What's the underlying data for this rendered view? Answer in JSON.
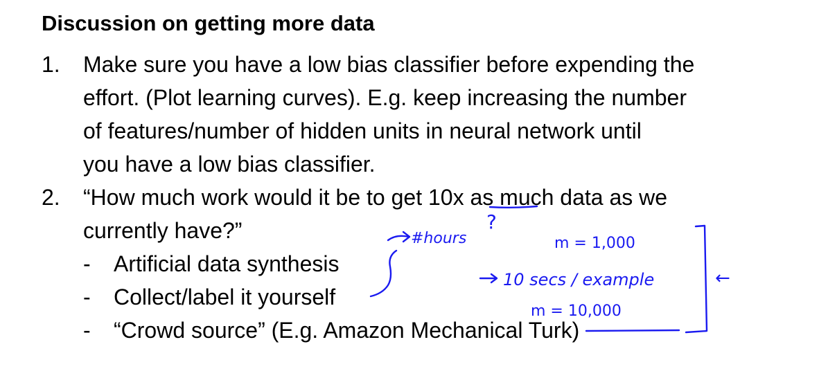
{
  "slide": {
    "title": "Discussion on getting more data",
    "items": [
      {
        "number": "1.",
        "lines": [
          "Make sure you have a low bias classifier before expending the",
          "effort. (Plot learning curves). E.g. keep increasing the number",
          "of features/number of hidden units in neural network until",
          "you have a low bias classifier."
        ]
      },
      {
        "number": "2.",
        "lines": [
          "“How much work would it be to get 10x as much data as we",
          "currently have?”"
        ],
        "subitems": [
          {
            "bullet": "-",
            "text": "Artificial data synthesis"
          },
          {
            "bullet": "-",
            "text": "Collect/label it yourself"
          },
          {
            "bullet": "-",
            "text": "“Crowd source” (E.g. Amazon Mechanical Turk)"
          }
        ]
      }
    ]
  },
  "annotations": {
    "hours": "#hours",
    "question_mark": "?",
    "m_small": "m = 1,000",
    "rate": "10 secs / example",
    "m_large": "m = 10,000",
    "arrow_left": "←",
    "ink_color": "#1a1af0"
  }
}
